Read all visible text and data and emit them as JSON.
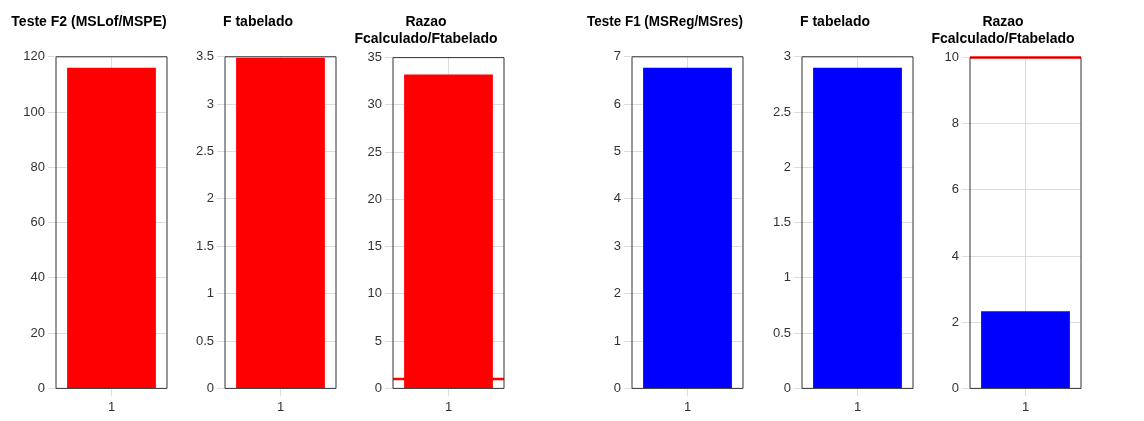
{
  "chart_data": [
    {
      "type": "bar",
      "title": "Teste F2 (MSLof/MSPE)",
      "categories": [
        "1"
      ],
      "values": [
        116
      ],
      "color": "#ff0000",
      "ylim": [
        0,
        120
      ],
      "yticks": [
        0,
        20,
        40,
        60,
        80,
        100,
        120
      ],
      "grid": true
    },
    {
      "type": "bar",
      "title": "F tabelado",
      "categories": [
        "1"
      ],
      "values": [
        3.49
      ],
      "color": "#ff0000",
      "ylim": [
        0,
        3.5
      ],
      "yticks": [
        0,
        0.5,
        1,
        1.5,
        2,
        2.5,
        3,
        3.5
      ],
      "grid": true
    },
    {
      "type": "bar",
      "title": "Razao Fcalculado/Ftabelado",
      "categories": [
        "1"
      ],
      "values": [
        33.2
      ],
      "color": "#ff0000",
      "ylim": [
        0,
        35
      ],
      "yticks": [
        0,
        5,
        10,
        15,
        20,
        25,
        30,
        35
      ],
      "grid": true,
      "ref_lines": [
        {
          "axis": "y",
          "value": 1,
          "color": "#ff0000"
        }
      ]
    },
    {
      "type": "bar",
      "title": "Teste F1 (MSReg/MSres)",
      "categories": [
        "1"
      ],
      "values": [
        6.77
      ],
      "color": "#0000ff",
      "ylim": [
        0,
        7
      ],
      "yticks": [
        0,
        1,
        2,
        3,
        4,
        5,
        6,
        7
      ],
      "grid": true
    },
    {
      "type": "bar",
      "title": "F tabelado",
      "categories": [
        "1"
      ],
      "values": [
        2.9
      ],
      "color": "#0000ff",
      "ylim": [
        0,
        3
      ],
      "yticks": [
        0,
        0.5,
        1,
        1.5,
        2,
        2.5,
        3
      ],
      "grid": true
    },
    {
      "type": "bar",
      "title": "Razao Fcalculado/Ftabelado",
      "categories": [
        "1"
      ],
      "values": [
        2.33
      ],
      "color": "#0000ff",
      "ylim": [
        0,
        10
      ],
      "yticks": [
        0,
        2,
        4,
        6,
        8,
        10
      ],
      "grid": true,
      "ref_lines": [
        {
          "axis": "y",
          "value": 10,
          "color": "#ff0000"
        }
      ]
    }
  ]
}
